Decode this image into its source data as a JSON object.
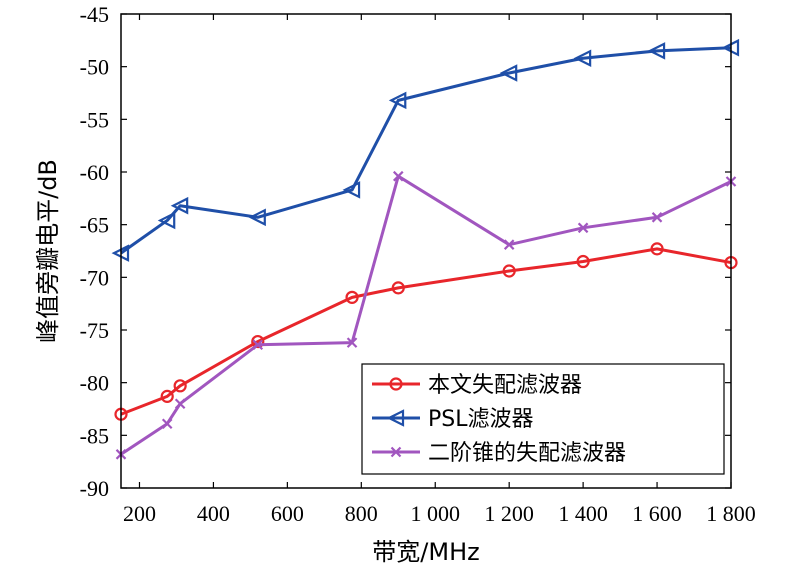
{
  "chart_data": {
    "type": "line",
    "xlabel": "带宽/MHz",
    "ylabel": "峰值旁瓣电平/dB",
    "xlim": [
      150,
      1800
    ],
    "ylim": [
      -90,
      -45
    ],
    "xticks": [
      200,
      400,
      600,
      800,
      1000,
      1200,
      1400,
      1600,
      1800
    ],
    "xtick_labels": [
      "200",
      "400",
      "600",
      "800",
      "1 000",
      "1 200",
      "1 400",
      "1 600",
      "1 800"
    ],
    "yticks": [
      -45,
      -50,
      -55,
      -60,
      -65,
      -70,
      -75,
      -80,
      -85,
      -90
    ],
    "ytick_labels": [
      "-45",
      "-50",
      "-55",
      "-60",
      "-65",
      "-70",
      "-75",
      "-80",
      "-85",
      "-90"
    ],
    "grid": false,
    "legend_position": "bottom-right",
    "series": [
      {
        "name": "本文失配滤波器",
        "color": "#e8262b",
        "marker": "circle",
        "x": [
          150,
          275,
          310,
          520,
          775,
          900,
          1200,
          1400,
          1600,
          1800
        ],
        "y": [
          -83,
          -81.3,
          -80.3,
          -76.1,
          -71.9,
          -71.0,
          -69.4,
          -68.5,
          -67.3,
          -68.6
        ]
      },
      {
        "name": "PSL滤波器",
        "color": "#1f4fa8",
        "marker": "triangle-left",
        "x": [
          150,
          275,
          310,
          520,
          775,
          900,
          1200,
          1400,
          1600,
          1800
        ],
        "y": [
          -67.7,
          -64.6,
          -63.2,
          -64.3,
          -61.7,
          -53.2,
          -50.6,
          -49.2,
          -48.5,
          -48.2
        ]
      },
      {
        "name": "二阶锥的失配滤波器",
        "color": "#a156bf",
        "marker": "x",
        "x": [
          150,
          275,
          310,
          520,
          775,
          900,
          1200,
          1400,
          1600,
          1800
        ],
        "y": [
          -86.8,
          -83.9,
          -82.0,
          -76.4,
          -76.2,
          -60.4,
          -66.9,
          -65.3,
          -64.3,
          -60.9
        ]
      }
    ]
  }
}
